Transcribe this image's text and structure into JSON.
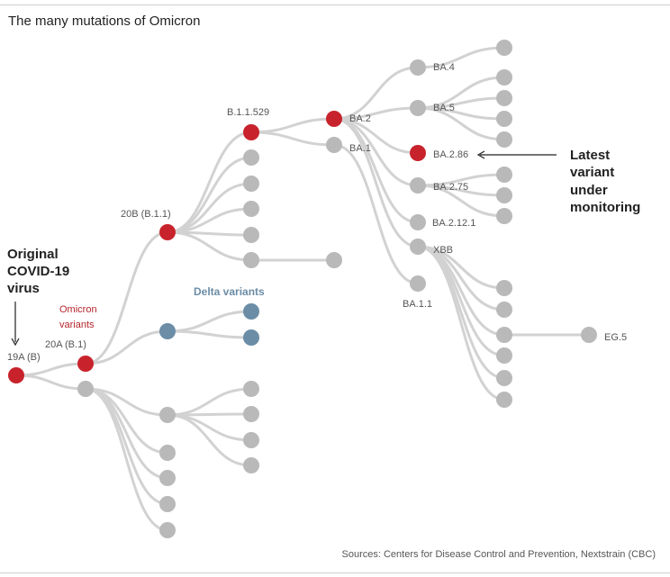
{
  "title": "The many mutations of Omicron",
  "source": "Sources: Centers for Disease Control and Prevention, Nextstrain (CBC)",
  "colors": {
    "red": "#c8232c",
    "grey": "#b9b9b9",
    "blue": "#6b8da6",
    "edge": "#d2d2d2"
  },
  "annotations": {
    "original": [
      "Original",
      "COVID-19",
      "virus"
    ],
    "omicron": [
      "Omicron",
      "variants"
    ],
    "delta": "Delta variants",
    "latest": [
      "Latest",
      "variant",
      "under",
      "monitoring"
    ]
  },
  "nodes": [
    {
      "id": "19A",
      "label": "19A (B)",
      "variant": "red"
    },
    {
      "id": "20A",
      "label": "20A (B.1)",
      "variant": "red"
    },
    {
      "id": "g-a",
      "label": "",
      "variant": "grey"
    },
    {
      "id": "20B",
      "label": "20B (B.1.1)",
      "variant": "red"
    },
    {
      "id": "delta",
      "label": "",
      "variant": "blue"
    },
    {
      "id": "B.1.1.529",
      "label": "B.1.1.529",
      "variant": "red"
    },
    {
      "id": "b-2",
      "label": "",
      "variant": "grey"
    },
    {
      "id": "b-3",
      "label": "",
      "variant": "grey"
    },
    {
      "id": "b-4",
      "label": "",
      "variant": "grey"
    },
    {
      "id": "b-5",
      "label": "",
      "variant": "grey"
    },
    {
      "id": "b-6",
      "label": "",
      "variant": "grey"
    },
    {
      "id": "b-6x",
      "label": "",
      "variant": "grey"
    },
    {
      "id": "d-1",
      "label": "",
      "variant": "blue"
    },
    {
      "id": "d-2",
      "label": "",
      "variant": "blue"
    },
    {
      "id": "BA.2",
      "label": "BA.2",
      "variant": "red"
    },
    {
      "id": "BA.1",
      "label": "BA.1",
      "variant": "grey"
    },
    {
      "id": "BA.4",
      "label": "BA.4",
      "variant": "grey"
    },
    {
      "id": "BA.5",
      "label": "BA.5",
      "variant": "grey"
    },
    {
      "id": "BA.2.86",
      "label": "BA.2.86",
      "variant": "red"
    },
    {
      "id": "BA.2.75",
      "label": "BA.2.75",
      "variant": "grey"
    },
    {
      "id": "BA.2.12.1",
      "label": "BA.2.12.1",
      "variant": "grey"
    },
    {
      "id": "XBB",
      "label": "XBB",
      "variant": "grey"
    },
    {
      "id": "BA.1.1",
      "label": "BA.1.1",
      "variant": "grey"
    },
    {
      "id": "a4-1",
      "label": "",
      "variant": "grey"
    },
    {
      "id": "a5-1",
      "label": "",
      "variant": "grey"
    },
    {
      "id": "a5-2",
      "label": "",
      "variant": "grey"
    },
    {
      "id": "a5-3",
      "label": "",
      "variant": "grey"
    },
    {
      "id": "a5-4",
      "label": "",
      "variant": "grey"
    },
    {
      "id": "a75-1",
      "label": "",
      "variant": "grey"
    },
    {
      "id": "a75-2",
      "label": "",
      "variant": "grey"
    },
    {
      "id": "a75-3",
      "label": "",
      "variant": "grey"
    },
    {
      "id": "x-1",
      "label": "",
      "variant": "grey"
    },
    {
      "id": "x-2",
      "label": "",
      "variant": "grey"
    },
    {
      "id": "x-3",
      "label": "",
      "variant": "grey"
    },
    {
      "id": "x-4",
      "label": "",
      "variant": "grey"
    },
    {
      "id": "x-5",
      "label": "",
      "variant": "grey"
    },
    {
      "id": "x-6",
      "label": "",
      "variant": "grey"
    },
    {
      "id": "EG.5",
      "label": "EG.5",
      "variant": "grey"
    },
    {
      "id": "ga-1",
      "label": "",
      "variant": "grey"
    },
    {
      "id": "ga-2",
      "label": "",
      "variant": "grey"
    },
    {
      "id": "ga-3",
      "label": "",
      "variant": "grey"
    },
    {
      "id": "ga-4",
      "label": "",
      "variant": "grey"
    },
    {
      "id": "ga-5",
      "label": "",
      "variant": "grey"
    },
    {
      "id": "ga-6",
      "label": "",
      "variant": "grey"
    },
    {
      "id": "ga-7",
      "label": "",
      "variant": "grey"
    },
    {
      "id": "ga-8",
      "label": "",
      "variant": "grey"
    },
    {
      "id": "ga-9",
      "label": "",
      "variant": "grey"
    }
  ],
  "edges": [
    [
      "19A",
      "20A"
    ],
    [
      "19A",
      "g-a"
    ],
    [
      "20A",
      "20B"
    ],
    [
      "20A",
      "delta"
    ],
    [
      "20B",
      "B.1.1.529"
    ],
    [
      "20B",
      "b-2"
    ],
    [
      "20B",
      "b-3"
    ],
    [
      "20B",
      "b-4"
    ],
    [
      "20B",
      "b-5"
    ],
    [
      "20B",
      "b-6"
    ],
    [
      "b-6",
      "b-6x"
    ],
    [
      "delta",
      "d-1"
    ],
    [
      "delta",
      "d-2"
    ],
    [
      "B.1.1.529",
      "BA.2"
    ],
    [
      "B.1.1.529",
      "BA.1"
    ],
    [
      "BA.2",
      "BA.4"
    ],
    [
      "BA.2",
      "BA.5"
    ],
    [
      "BA.2",
      "BA.2.86"
    ],
    [
      "BA.2",
      "BA.2.75"
    ],
    [
      "BA.2",
      "BA.2.12.1"
    ],
    [
      "BA.2",
      "XBB"
    ],
    [
      "BA.1",
      "BA.1.1"
    ],
    [
      "BA.4",
      "a4-1"
    ],
    [
      "BA.5",
      "a5-1"
    ],
    [
      "BA.5",
      "a5-2"
    ],
    [
      "BA.5",
      "a5-3"
    ],
    [
      "BA.5",
      "a5-4"
    ],
    [
      "BA.2.75",
      "a75-1"
    ],
    [
      "BA.2.75",
      "a75-2"
    ],
    [
      "BA.2.75",
      "a75-3"
    ],
    [
      "XBB",
      "x-1"
    ],
    [
      "XBB",
      "x-2"
    ],
    [
      "XBB",
      "x-3"
    ],
    [
      "XBB",
      "x-4"
    ],
    [
      "XBB",
      "x-5"
    ],
    [
      "XBB",
      "x-6"
    ],
    [
      "x-3",
      "EG.5"
    ],
    [
      "g-a",
      "ga-1"
    ],
    [
      "g-a",
      "ga-6"
    ],
    [
      "g-a",
      "ga-7"
    ],
    [
      "g-a",
      "ga-8"
    ],
    [
      "g-a",
      "ga-9"
    ],
    [
      "ga-1",
      "ga-2"
    ],
    [
      "ga-1",
      "ga-3"
    ],
    [
      "ga-1",
      "ga-4"
    ],
    [
      "ga-1",
      "ga-5"
    ]
  ]
}
